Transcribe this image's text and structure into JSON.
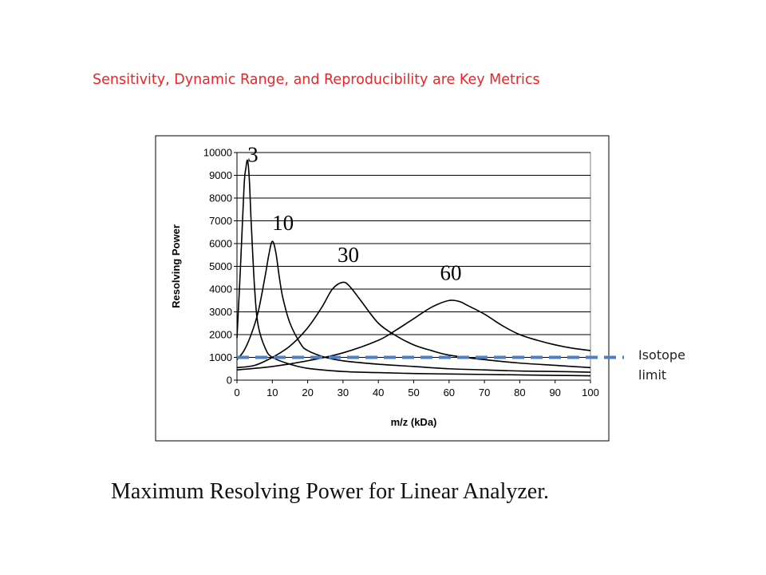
{
  "slide": {
    "headline": "Sensitivity, Dynamic Range, and Reproducibility are Key Metrics",
    "caption": "Maximum Resolving Power for Linear Analyzer.",
    "side_note": "Isotope\nlimit"
  },
  "colors": {
    "headline": "#e8262a",
    "isotope_line": "#4f7ec2",
    "curves": "#000000",
    "plot_border": "#7f7f7f"
  },
  "chart_data": {
    "type": "line",
    "title": "",
    "xlabel": "m/z (kDa)",
    "ylabel": "Resolving Power",
    "xlim": [
      0,
      100
    ],
    "ylim": [
      0,
      10000
    ],
    "x_ticks": [
      0,
      10,
      20,
      30,
      40,
      50,
      60,
      70,
      80,
      90,
      100
    ],
    "y_ticks": [
      0,
      1000,
      2000,
      3000,
      4000,
      5000,
      6000,
      7000,
      8000,
      9000,
      10000
    ],
    "grid": "horizontal",
    "legend": "none",
    "series": [
      {
        "name": "3",
        "x": [
          0,
          1,
          2,
          2.5,
          3,
          3.5,
          4,
          5,
          6,
          8,
          10,
          15,
          20,
          30,
          40,
          50,
          60,
          70,
          80,
          90,
          100
        ],
        "y": [
          1850,
          5000,
          8500,
          9300,
          9650,
          8800,
          7000,
          4000,
          2400,
          1400,
          1000,
          700,
          520,
          380,
          330,
          290,
          270,
          250,
          230,
          210,
          190
        ]
      },
      {
        "name": "10",
        "x": [
          0,
          2,
          4,
          6,
          8,
          9,
          10,
          11,
          12,
          13,
          15,
          18,
          20,
          25,
          30,
          40,
          50,
          60,
          70,
          80,
          90,
          100
        ],
        "y": [
          900,
          1300,
          2000,
          3000,
          4600,
          5500,
          6100,
          5600,
          4500,
          3600,
          2500,
          1600,
          1300,
          1000,
          850,
          700,
          600,
          500,
          450,
          400,
          380,
          350
        ]
      },
      {
        "name": "30",
        "x": [
          0,
          5,
          10,
          15,
          20,
          24,
          27,
          30,
          32,
          35,
          40,
          45,
          50,
          55,
          60,
          70,
          80,
          90,
          100
        ],
        "y": [
          550,
          650,
          1000,
          1500,
          2300,
          3200,
          4000,
          4300,
          4100,
          3500,
          2500,
          1950,
          1550,
          1300,
          1100,
          900,
          750,
          650,
          550
        ]
      },
      {
        "name": "60",
        "x": [
          0,
          10,
          20,
          30,
          40,
          45,
          50,
          55,
          60,
          63,
          65,
          70,
          75,
          80,
          85,
          90,
          95,
          100
        ],
        "y": [
          450,
          600,
          850,
          1200,
          1750,
          2200,
          2700,
          3200,
          3500,
          3450,
          3300,
          2900,
          2400,
          2000,
          1750,
          1550,
          1400,
          1300
        ]
      }
    ],
    "annotations": [
      {
        "text": "3",
        "x": 4.5,
        "y": 9600
      },
      {
        "text": "10",
        "x": 13,
        "y": 6600
      },
      {
        "text": "30",
        "x": 31.5,
        "y": 5200
      },
      {
        "text": "60",
        "x": 60.5,
        "y": 4400
      }
    ],
    "isotope_limit": {
      "y": 1000,
      "x_start": 0,
      "label": "Isotope limit"
    }
  }
}
